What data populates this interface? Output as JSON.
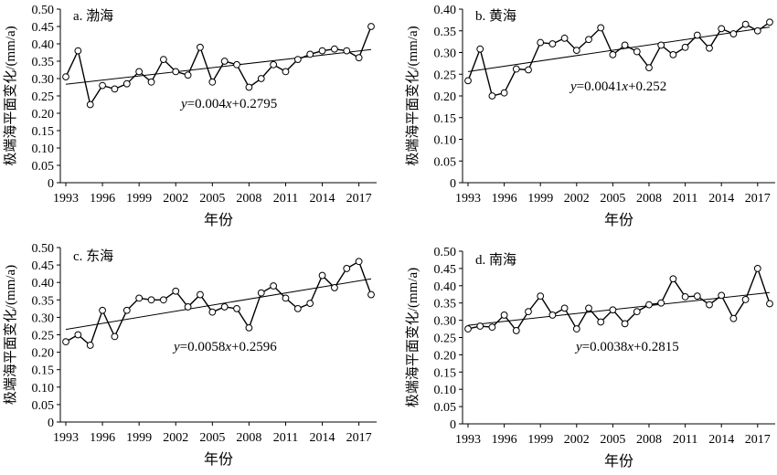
{
  "figure": {
    "ylabel": "极端海平面变化/(mm/a)",
    "xlabel": "年份"
  },
  "chart_data": [
    {
      "type": "line",
      "title": "a. 渤海",
      "xlabel": "年份",
      "ylabel": "极端海平面变化/(mm/a)",
      "equation": "y=0.004x+0.2795",
      "ylim": [
        0,
        0.5
      ],
      "yticks": [
        "0",
        "0.05",
        "0.10",
        "0.15",
        "0.20",
        "0.25",
        "0.30",
        "0.35",
        "0.40",
        "0.45",
        "0.50"
      ],
      "xticks": [
        "1993",
        "1996",
        "1999",
        "2002",
        "2005",
        "2008",
        "2011",
        "2014",
        "2017"
      ],
      "x": [
        1993,
        1994,
        1995,
        1996,
        1997,
        1998,
        1999,
        2000,
        2001,
        2002,
        2003,
        2004,
        2005,
        2006,
        2007,
        2008,
        2009,
        2010,
        2011,
        2012,
        2013,
        2014,
        2015,
        2016,
        2017,
        2018
      ],
      "series": [
        {
          "values": [
            0.305,
            0.38,
            0.225,
            0.28,
            0.27,
            0.285,
            0.32,
            0.29,
            0.355,
            0.32,
            0.31,
            0.39,
            0.29,
            0.35,
            0.34,
            0.275,
            0.3,
            0.34,
            0.32,
            0.355,
            0.37,
            0.38,
            0.385,
            0.38,
            0.36,
            0.45
          ]
        }
      ],
      "trend": {
        "slope": 0.004,
        "intercept": 0.2795
      }
    },
    {
      "type": "line",
      "title": "b. 黄海",
      "xlabel": "年份",
      "ylabel": "极端海平面变化/(mm/a)",
      "equation": "y=0.0041x+0.252",
      "ylim": [
        0,
        0.4
      ],
      "yticks": [
        "0",
        "0.05",
        "0.10",
        "0.15",
        "0.20",
        "0.25",
        "0.30",
        "0.35",
        "0.40"
      ],
      "xticks": [
        "1993",
        "1996",
        "1999",
        "2002",
        "2005",
        "2008",
        "2011",
        "2014",
        "2017"
      ],
      "x": [
        1993,
        1994,
        1995,
        1996,
        1997,
        1998,
        1999,
        2000,
        2001,
        2002,
        2003,
        2004,
        2005,
        2006,
        2007,
        2008,
        2009,
        2010,
        2011,
        2012,
        2013,
        2014,
        2015,
        2016,
        2017,
        2018
      ],
      "series": [
        {
          "values": [
            0.235,
            0.308,
            0.2,
            0.207,
            0.262,
            0.26,
            0.323,
            0.32,
            0.333,
            0.305,
            0.33,
            0.357,
            0.295,
            0.317,
            0.302,
            0.265,
            0.317,
            0.295,
            0.312,
            0.34,
            0.31,
            0.355,
            0.343,
            0.365,
            0.35,
            0.37
          ]
        }
      ],
      "trend": {
        "slope": 0.0041,
        "intercept": 0.252
      }
    },
    {
      "type": "line",
      "title": "c. 东海",
      "xlabel": "年份",
      "ylabel": "极端海平面变化/(mm/a)",
      "equation": "y=0.0058x+0.2596",
      "ylim": [
        0,
        0.5
      ],
      "yticks": [
        "0",
        "0.05",
        "0.10",
        "0.15",
        "0.20",
        "0.25",
        "0.30",
        "0.35",
        "0.40",
        "0.45",
        "0.50"
      ],
      "xticks": [
        "1993",
        "1996",
        "1999",
        "2002",
        "2005",
        "2008",
        "2011",
        "2014",
        "2017"
      ],
      "x": [
        1993,
        1994,
        1995,
        1996,
        1997,
        1998,
        1999,
        2000,
        2001,
        2002,
        2003,
        2004,
        2005,
        2006,
        2007,
        2008,
        2009,
        2010,
        2011,
        2012,
        2013,
        2014,
        2015,
        2016,
        2017,
        2018
      ],
      "series": [
        {
          "values": [
            0.23,
            0.25,
            0.22,
            0.32,
            0.245,
            0.32,
            0.355,
            0.35,
            0.35,
            0.375,
            0.33,
            0.365,
            0.315,
            0.33,
            0.325,
            0.27,
            0.37,
            0.39,
            0.355,
            0.325,
            0.34,
            0.42,
            0.385,
            0.44,
            0.46,
            0.365
          ]
        }
      ],
      "trend": {
        "slope": 0.0058,
        "intercept": 0.2596
      }
    },
    {
      "type": "line",
      "title": "d. 南海",
      "xlabel": "年份",
      "ylabel": "极端海平面变化/(mm/a)",
      "equation": "y=0.0038x+0.2815",
      "ylim": [
        0,
        0.5
      ],
      "yticks": [
        "0",
        "0.05",
        "0.10",
        "0.15",
        "0.20",
        "0.25",
        "0.30",
        "0.35",
        "0.40",
        "0.45",
        "0.50"
      ],
      "xticks": [
        "1993",
        "1996",
        "1999",
        "2002",
        "2005",
        "2008",
        "2011",
        "2014",
        "2017"
      ],
      "x": [
        1993,
        1994,
        1995,
        1996,
        1997,
        1998,
        1999,
        2000,
        2001,
        2002,
        2003,
        2004,
        2005,
        2006,
        2007,
        2008,
        2009,
        2010,
        2011,
        2012,
        2013,
        2014,
        2015,
        2016,
        2017,
        2018
      ],
      "series": [
        {
          "values": [
            0.275,
            0.283,
            0.28,
            0.315,
            0.27,
            0.325,
            0.37,
            0.315,
            0.335,
            0.275,
            0.335,
            0.295,
            0.33,
            0.29,
            0.325,
            0.345,
            0.35,
            0.42,
            0.368,
            0.37,
            0.345,
            0.372,
            0.305,
            0.36,
            0.45,
            0.348
          ]
        }
      ],
      "trend": {
        "slope": 0.0038,
        "intercept": 0.2815
      }
    }
  ]
}
